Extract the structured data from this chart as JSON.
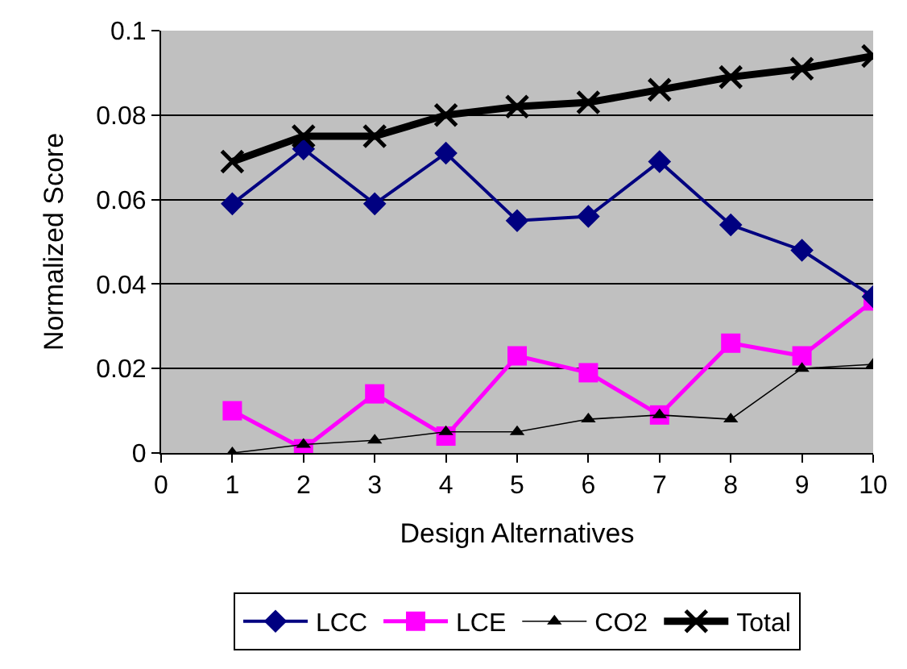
{
  "chart_data": {
    "type": "line",
    "xlabel": "Design Alternatives",
    "ylabel": "Normalized Score",
    "x": [
      1,
      2,
      3,
      4,
      5,
      6,
      7,
      8,
      9,
      10
    ],
    "xlim": [
      0,
      10
    ],
    "xticks": [
      0,
      1,
      2,
      3,
      4,
      5,
      6,
      7,
      8,
      9,
      10
    ],
    "ylim": [
      0,
      0.1
    ],
    "yticks": [
      0,
      0.02,
      0.04,
      0.06,
      0.08,
      0.1
    ],
    "grid": "y",
    "legend": "bottom",
    "series": [
      {
        "name": "LCC",
        "color": "#000080",
        "marker": "diamond",
        "values": [
          0.059,
          0.072,
          0.059,
          0.071,
          0.055,
          0.056,
          0.069,
          0.054,
          0.048,
          0.037
        ]
      },
      {
        "name": "LCE",
        "color": "#ff00ff",
        "marker": "square",
        "values": [
          0.01,
          0.001,
          0.014,
          0.004,
          0.023,
          0.019,
          0.009,
          0.026,
          0.023,
          0.036
        ]
      },
      {
        "name": "CO2",
        "color": "#000000",
        "marker": "triangle",
        "values": [
          0.0,
          0.002,
          0.003,
          0.005,
          0.005,
          0.008,
          0.009,
          0.008,
          0.02,
          0.021
        ]
      },
      {
        "name": "Total",
        "color": "#000000",
        "marker": "cross",
        "values": [
          0.069,
          0.075,
          0.075,
          0.08,
          0.082,
          0.083,
          0.086,
          0.089,
          0.091,
          0.094
        ]
      }
    ]
  }
}
